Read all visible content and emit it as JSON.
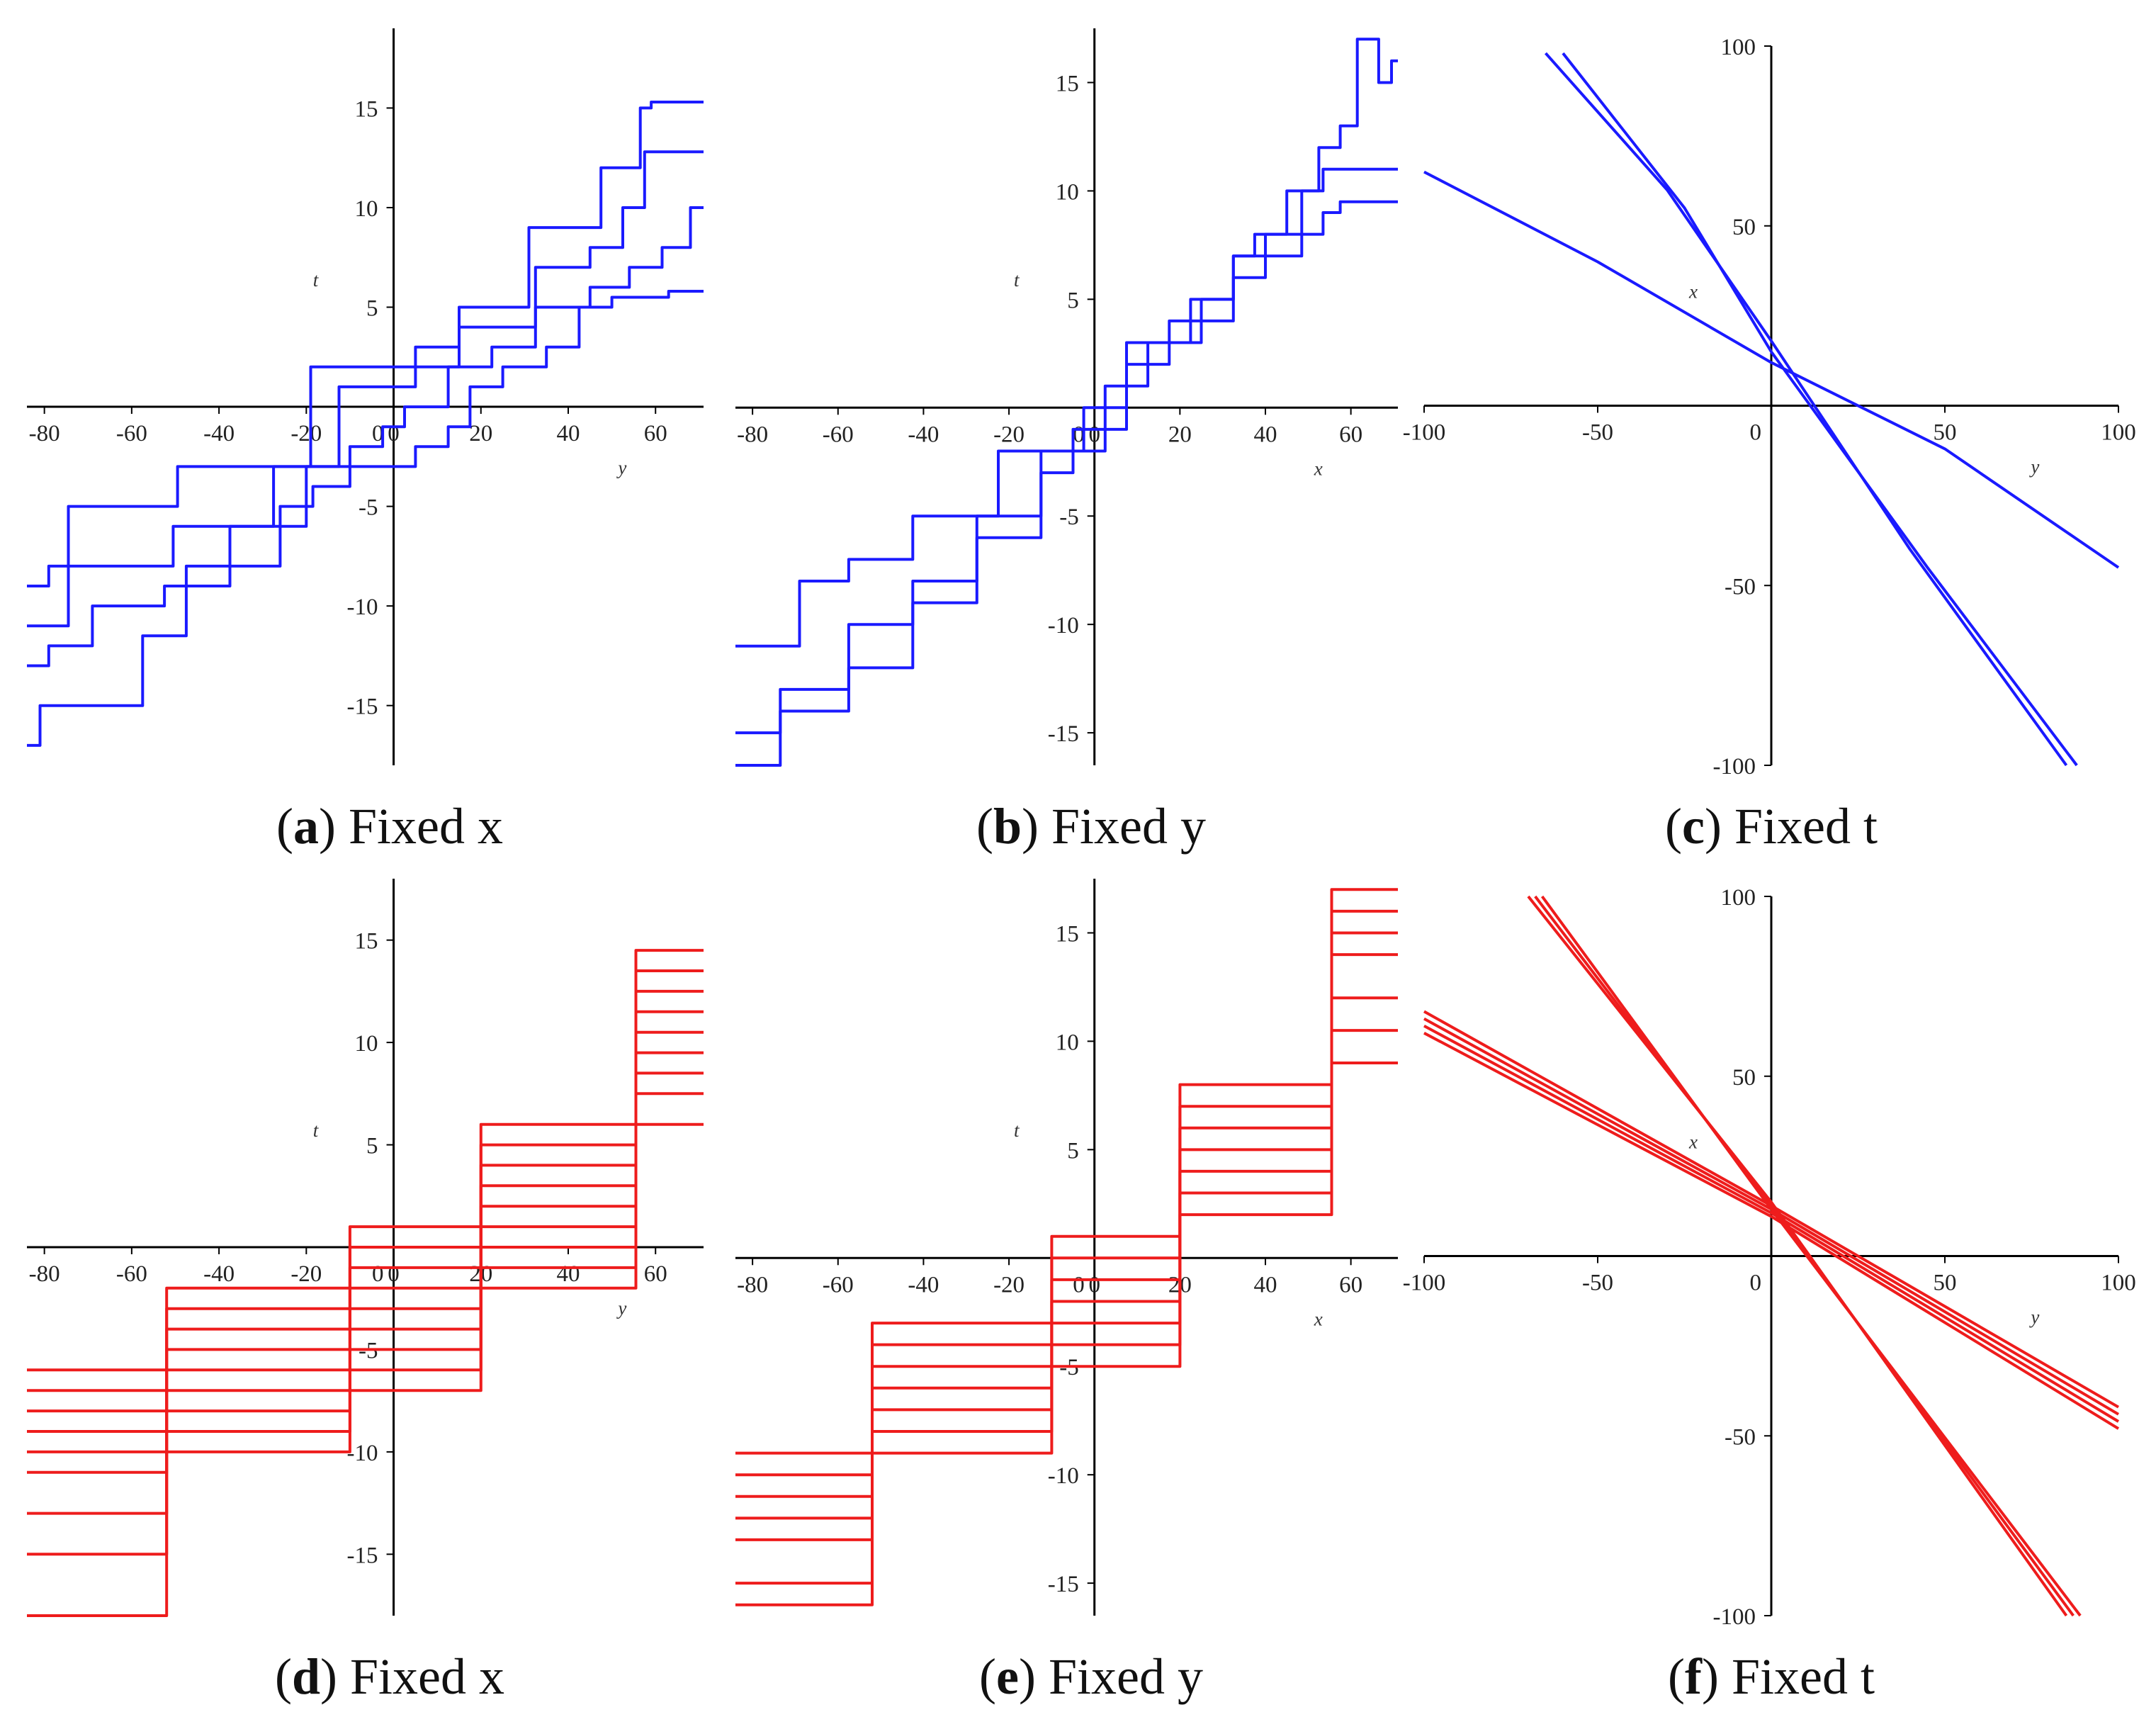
{
  "figure": {
    "captions": [
      {
        "letter": "a",
        "text": " Fixed x",
        "open": "(",
        "close": ")"
      },
      {
        "letter": "b",
        "text": " Fixed y",
        "open": "(",
        "close": ")"
      },
      {
        "letter": "c",
        "text": " Fixed t",
        "open": "(",
        "close": ")"
      },
      {
        "letter": "d",
        "text": " Fixed x",
        "open": "(",
        "close": ")"
      },
      {
        "letter": "e",
        "text": " Fixed y",
        "open": "(",
        "close": ")"
      },
      {
        "letter": "f",
        "text": " Fixed t",
        "open": "(",
        "close": ")"
      }
    ]
  },
  "chart_data": [
    {
      "id": "a",
      "type": "line",
      "color": "#1a1aff",
      "title": "(a) Fixed x",
      "xlabel": "y",
      "ylabel": "t",
      "xlim": [
        -84,
        71
      ],
      "ylim": [
        -18,
        19
      ],
      "xticks": [
        -80,
        -60,
        -40,
        -20,
        0,
        20,
        40,
        60
      ],
      "yticks": [
        -15,
        -10,
        -5,
        5,
        10,
        15
      ],
      "series": [
        {
          "name": "s1",
          "x": [
            -84,
            -80,
            -78,
            -75,
            -74,
            -60,
            -50,
            -49,
            -45,
            -20,
            -18,
            0,
            10,
            20,
            22,
            40,
            55,
            58,
            60,
            71
          ],
          "y": [
            -9,
            -9,
            -8,
            -8,
            -5,
            -5,
            -5,
            -3,
            -3,
            -3,
            2,
            2,
            2,
            5,
            5,
            9,
            12,
            15,
            15.3,
            15.3
          ]
        },
        {
          "name": "s2",
          "x": [
            -84,
            -78,
            -75,
            -74,
            -60,
            -52,
            -49,
            -45,
            -30,
            -25,
            -20,
            -5,
            0,
            10,
            20,
            25,
            40,
            50,
            55,
            60,
            71
          ],
          "y": [
            -11,
            -11,
            -11,
            -8,
            -8,
            -8,
            -6,
            -6,
            -6,
            -3,
            -3,
            1,
            1,
            3,
            4,
            4,
            7,
            8,
            10,
            12.8,
            12.8
          ]
        },
        {
          "name": "s3",
          "x": [
            -84,
            -80,
            -78,
            -60,
            -55,
            -50,
            -45,
            -30,
            -25,
            -15,
            -5,
            0,
            5,
            20,
            25,
            40,
            50,
            58,
            65,
            71
          ],
          "y": [
            -13,
            -13,
            -12,
            -10,
            -10,
            -9,
            -9,
            -6,
            -6,
            -3,
            -2,
            -1,
            0,
            2,
            3,
            5,
            6,
            7,
            8,
            10
          ]
        },
        {
          "name": "s4",
          "x": [
            -84,
            -82,
            -80,
            -60,
            -55,
            -50,
            -45,
            -30,
            -22,
            -15,
            -5,
            0,
            10,
            15,
            20,
            30,
            40,
            45,
            55,
            71
          ],
          "y": [
            -17,
            -17,
            -15,
            -15,
            -11.5,
            -11.5,
            -8,
            -8,
            -5,
            -4,
            -3,
            -3,
            -2,
            -1,
            1,
            2,
            3,
            5,
            5.5,
            5.8
          ]
        }
      ]
    },
    {
      "id": "b",
      "type": "line",
      "color": "#1a1aff",
      "title": "(b) Fixed y",
      "xlabel": "x",
      "ylabel": "t",
      "xlim": [
        -84,
        71
      ],
      "ylim": [
        -16.5,
        17.5
      ],
      "xticks": [
        -80,
        -60,
        -40,
        -20,
        0,
        20,
        40,
        60
      ],
      "yticks": [
        -15,
        -10,
        -5,
        5,
        10,
        15
      ],
      "series": [
        {
          "name": "s1",
          "x": [
            -84,
            -70,
            -68,
            -60,
            -55,
            -45,
            -40,
            -25,
            -20,
            -5,
            0,
            5,
            10,
            20,
            25,
            30,
            35,
            40,
            50,
            55,
            60,
            63,
            65,
            68,
            71
          ],
          "y": [
            -11,
            -11,
            -8,
            -8,
            -7,
            -7,
            -5,
            -5,
            -2,
            -2,
            0,
            1,
            3,
            3,
            5,
            5,
            7,
            8,
            10,
            12,
            13,
            17,
            17,
            15,
            16
          ]
        },
        {
          "name": "s2",
          "x": [
            -84,
            -75,
            -72,
            -60,
            -55,
            -45,
            -40,
            -30,
            -25,
            -15,
            -10,
            0,
            5,
            10,
            15,
            20,
            30,
            35,
            45,
            52,
            55,
            60,
            71
          ],
          "y": [
            -15,
            -15,
            -13,
            -13,
            -10,
            -10,
            -8,
            -8,
            -5,
            -5,
            -2,
            -1,
            0,
            2,
            3,
            4,
            5,
            7,
            8,
            10,
            11,
            11,
            11
          ]
        },
        {
          "name": "s3",
          "x": [
            -84,
            -75,
            -72,
            -60,
            -55,
            -45,
            -40,
            -30,
            -25,
            -15,
            -10,
            0,
            5,
            10,
            15,
            20,
            30,
            35,
            45,
            52,
            55,
            60,
            71
          ],
          "y": [
            -16.5,
            -16.5,
            -14,
            -14,
            -12,
            -12,
            -9,
            -9,
            -6,
            -6,
            -3,
            -2,
            -1,
            1,
            2,
            3,
            4,
            6,
            7,
            8,
            9,
            9.5,
            9.5
          ]
        }
      ]
    },
    {
      "id": "c",
      "type": "line",
      "color": "#1a1aff",
      "title": "(c) Fixed t",
      "xlabel": "y",
      "ylabel": "x",
      "xlim": [
        -100,
        100
      ],
      "ylim": [
        -100,
        100
      ],
      "xticks": [
        -100,
        -50,
        50,
        100
      ],
      "yticks": [
        100,
        50,
        -50,
        -100
      ],
      "series": [
        {
          "name": "s1",
          "x": [
            -100,
            -50,
            0,
            50,
            100
          ],
          "y": [
            65,
            40,
            12,
            -12,
            -45
          ]
        },
        {
          "name": "s2",
          "x": [
            -65,
            -30,
            0,
            40,
            85
          ],
          "y": [
            98,
            60,
            18,
            -40,
            -100
          ]
        },
        {
          "name": "s3",
          "x": [
            -60,
            -25,
            0,
            45,
            88
          ],
          "y": [
            98,
            55,
            15,
            -45,
            -100
          ]
        }
      ]
    },
    {
      "id": "d",
      "type": "line",
      "color": "#ee1c1c",
      "title": "(d) Fixed x",
      "xlabel": "y",
      "ylabel": "t",
      "xlim": [
        -84,
        71
      ],
      "ylim": [
        -18,
        18
      ],
      "xticks": [
        -80,
        -60,
        -40,
        -20,
        0,
        20,
        40,
        60
      ],
      "yticks": [
        -15,
        -10,
        -5,
        5,
        10,
        15
      ],
      "series": [
        {
          "name": "s1",
          "x": [
            -84,
            -20,
            0,
            40,
            71
          ],
          "y": [
            -6,
            -2,
            1,
            6,
            14.5
          ]
        },
        {
          "name": "s2",
          "x": [
            -84,
            -20,
            0,
            40,
            71
          ],
          "y": [
            -7,
            -3,
            0,
            5,
            13.5
          ]
        },
        {
          "name": "s3",
          "x": [
            -84,
            -20,
            0,
            40,
            71
          ],
          "y": [
            -8,
            -4,
            -1,
            4,
            12.5
          ]
        },
        {
          "name": "s4",
          "x": [
            -84,
            -20,
            0,
            40,
            71
          ],
          "y": [
            -9,
            -5,
            -2,
            3,
            11.5
          ]
        },
        {
          "name": "s5",
          "x": [
            -84,
            -20,
            0,
            40,
            71
          ],
          "y": [
            -10,
            -6,
            -3,
            2,
            10.5
          ]
        },
        {
          "name": "s6",
          "x": [
            -84,
            -20,
            0,
            40,
            71
          ],
          "y": [
            -11,
            -7,
            -4,
            1,
            9.5
          ]
        },
        {
          "name": "s7",
          "x": [
            -84,
            -20,
            0,
            40,
            71
          ],
          "y": [
            -13,
            -8,
            -5,
            0,
            8.5
          ]
        },
        {
          "name": "s8",
          "x": [
            -84,
            -20,
            0,
            40,
            71
          ],
          "y": [
            -15,
            -9,
            -6,
            -1,
            7.5
          ]
        },
        {
          "name": "s9",
          "x": [
            -84,
            -20,
            0,
            40,
            71
          ],
          "y": [
            -18,
            -10,
            -7,
            -2,
            6
          ]
        }
      ]
    },
    {
      "id": "e",
      "type": "line",
      "color": "#ee1c1c",
      "title": "(e) Fixed y",
      "xlabel": "x",
      "ylabel": "t",
      "xlim": [
        -84,
        71
      ],
      "ylim": [
        -16.5,
        17.5
      ],
      "xticks": [
        -80,
        -60,
        -40,
        -20,
        0,
        20,
        40,
        60
      ],
      "yticks": [
        -15,
        -10,
        -5,
        5,
        10,
        15
      ],
      "series": [
        {
          "name": "s1",
          "x": [
            -84,
            -20,
            0,
            40,
            71
          ],
          "y": [
            -9,
            -3,
            1,
            8,
            17
          ]
        },
        {
          "name": "s2",
          "x": [
            -84,
            -20,
            0,
            40,
            71
          ],
          "y": [
            -10,
            -4,
            0,
            7,
            16
          ]
        },
        {
          "name": "s3",
          "x": [
            -84,
            -20,
            0,
            40,
            71
          ],
          "y": [
            -11,
            -5,
            -1,
            6,
            15
          ]
        },
        {
          "name": "s4",
          "x": [
            -84,
            -20,
            0,
            40,
            71
          ],
          "y": [
            -12,
            -6,
            -2,
            5,
            14
          ]
        },
        {
          "name": "s5",
          "x": [
            -84,
            -20,
            0,
            40,
            71
          ],
          "y": [
            -13,
            -7,
            -3,
            4,
            12
          ]
        },
        {
          "name": "s6",
          "x": [
            -84,
            -20,
            0,
            40,
            71
          ],
          "y": [
            -15,
            -8,
            -4,
            3,
            10.5
          ]
        },
        {
          "name": "s7",
          "x": [
            -84,
            -20,
            0,
            40,
            71
          ],
          "y": [
            -16,
            -9,
            -5,
            2,
            9
          ]
        }
      ]
    },
    {
      "id": "f",
      "type": "line",
      "color": "#ee1c1c",
      "title": "(f) Fixed t",
      "xlabel": "y",
      "ylabel": "x",
      "xlim": [
        -100,
        100
      ],
      "ylim": [
        -100,
        100
      ],
      "xticks": [
        -100,
        -50,
        50,
        100
      ],
      "yticks": [
        100,
        50,
        -50,
        -100
      ],
      "series": [
        {
          "name": "s1",
          "x": [
            -100,
            0,
            100
          ],
          "y": [
            68,
            14,
            -42
          ]
        },
        {
          "name": "s2",
          "x": [
            -100,
            0,
            100
          ],
          "y": [
            66,
            13,
            -44
          ]
        },
        {
          "name": "s3",
          "x": [
            -100,
            0,
            100
          ],
          "y": [
            64,
            12,
            -46
          ]
        },
        {
          "name": "s4",
          "x": [
            -100,
            0,
            100
          ],
          "y": [
            62,
            11,
            -48
          ]
        },
        {
          "name": "s5",
          "x": [
            -70,
            0,
            85
          ],
          "y": [
            100,
            15,
            -100
          ]
        },
        {
          "name": "s6",
          "x": [
            -68,
            0,
            87
          ],
          "y": [
            100,
            14,
            -100
          ]
        },
        {
          "name": "s7",
          "x": [
            -66,
            0,
            89
          ],
          "y": [
            100,
            13,
            -100
          ]
        }
      ]
    }
  ]
}
